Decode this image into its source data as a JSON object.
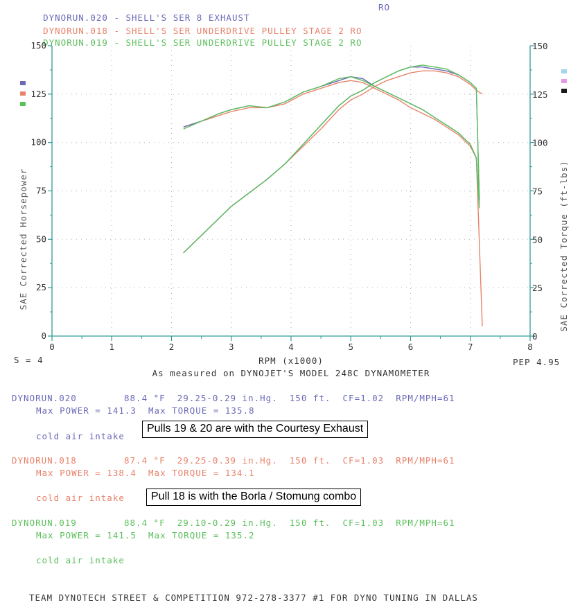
{
  "legend": [
    {
      "run": "DYNORUN.020",
      "desc": "SHELL'S SER 8 EXHAUST",
      "tag": "RO",
      "color": "#6a6ab8"
    },
    {
      "run": "DYNORUN.018",
      "desc": "SHELL'S SER UNDERDRIVE PULLEY STAGE 2",
      "tag": "RO",
      "color": "#e8826a"
    },
    {
      "run": "DYNORUN.019",
      "desc": "SHELL'S SER UNDERDRIVE PULLEY STAGE 2",
      "tag": "RO",
      "color": "#5cc05c"
    }
  ],
  "legend_sep": "-",
  "s_label": "S = 4",
  "pep_label": "PEP 4.95",
  "caption": "As measured on DYNOJET'S MODEL 248C DYNAMOMETER",
  "runs": [
    {
      "name": "DYNORUN.020",
      "temp": "88.4 °F",
      "baro": "29.25-0.29 in.Hg.",
      "alt": "150 ft.",
      "cf": "CF=1.02",
      "ratio": "RPM/MPH=61",
      "max_power_label": "Max POWER =",
      "max_power": "141.3",
      "max_torque_label": "Max TORQUE =",
      "max_torque": "135.8",
      "intake": "cold air intake",
      "color": "#6a6ab8",
      "callout": "Pulls 19 & 20 are with the Courtesy Exhaust"
    },
    {
      "name": "DYNORUN.018",
      "temp": "87.4 °F",
      "baro": "29.25-0.39 in.Hg.",
      "alt": "150 ft.",
      "cf": "CF=1.03",
      "ratio": "RPM/MPH=61",
      "max_power_label": "Max POWER =",
      "max_power": "138.4",
      "max_torque_label": "Max TORQUE =",
      "max_torque": "134.1",
      "intake": "cold air intake",
      "color": "#e8826a",
      "callout": "Pull 18 is with the Borla / Stomung combo"
    },
    {
      "name": "DYNORUN.019",
      "temp": "88.4 °F",
      "baro": "29.10-0.29 in.Hg.",
      "alt": "150 ft.",
      "cf": "CF=1.03",
      "ratio": "RPM/MPH=61",
      "max_power_label": "Max POWER =",
      "max_power": "141.5",
      "max_torque_label": "Max TORQUE =",
      "max_torque": "135.2",
      "intake": "cold air intake",
      "color": "#5cc05c",
      "callout": ""
    }
  ],
  "footer": "TEAM DYNOTECH STREET & COMPETITION 972-278-3377 #1 FOR DYNO TUNING IN DALLAS",
  "chart_data": {
    "type": "line",
    "xlabel": "RPM (x1000)",
    "ylabel_left": "SAE Corrected Horsepower",
    "ylabel_right": "SAE Corrected Torque (ft-lbs)",
    "xlim": [
      0,
      8
    ],
    "ylim": [
      0,
      150
    ],
    "x_ticks": [
      0,
      1,
      2,
      3,
      4,
      5,
      6,
      7,
      8
    ],
    "y_ticks": [
      0,
      25,
      50,
      75,
      100,
      125,
      150
    ],
    "grid": true,
    "grid_style": "dotted",
    "axis_color": "#2f9a96",
    "tick_label_color": "#333333",
    "series": [
      {
        "name": "DYNORUN.020",
        "measure": "horsepower",
        "color": "#6a6ab8",
        "x": [
          2.2,
          2.5,
          2.8,
          3.0,
          3.3,
          3.6,
          3.9,
          4.2,
          4.5,
          4.8,
          5.0,
          5.2,
          5.4,
          5.6,
          5.8,
          6.0,
          6.2,
          6.4,
          6.6,
          6.8,
          7.0,
          7.1,
          7.15
        ],
        "y": [
          43,
          52,
          61,
          67,
          74,
          81,
          89,
          99,
          109,
          119,
          124,
          127,
          131,
          134,
          137,
          139,
          139,
          138,
          137,
          135,
          131,
          128,
          70
        ]
      },
      {
        "name": "DYNORUN.020",
        "measure": "torque",
        "color": "#6a6ab8",
        "x": [
          2.2,
          2.5,
          2.8,
          3.0,
          3.3,
          3.6,
          3.9,
          4.2,
          4.5,
          4.8,
          5.0,
          5.2,
          5.4,
          5.6,
          5.8,
          6.0,
          6.2,
          6.4,
          6.6,
          6.8,
          7.0,
          7.1,
          7.15
        ],
        "y": [
          108,
          111,
          115,
          117,
          119,
          118,
          121,
          126,
          129,
          132,
          134,
          133,
          129,
          126,
          123,
          120,
          117,
          113,
          109,
          105,
          99,
          92,
          68
        ]
      },
      {
        "name": "DYNORUN.018",
        "measure": "horsepower",
        "color": "#e8826a",
        "x": [
          2.2,
          2.5,
          2.8,
          3.0,
          3.3,
          3.6,
          3.9,
          4.2,
          4.5,
          4.8,
          5.0,
          5.2,
          5.4,
          5.6,
          5.8,
          6.0,
          6.2,
          6.4,
          6.6,
          6.8,
          7.0,
          7.1,
          7.2
        ],
        "y": [
          43,
          52,
          61,
          67,
          74,
          81,
          89,
          98,
          107,
          117,
          122,
          125,
          129,
          132,
          134,
          136,
          137,
          137,
          136,
          134,
          130,
          127,
          125
        ]
      },
      {
        "name": "DYNORUN.018",
        "measure": "torque",
        "color": "#e8826a",
        "x": [
          2.2,
          2.5,
          2.8,
          3.0,
          3.3,
          3.6,
          3.9,
          4.2,
          4.5,
          4.8,
          5.0,
          5.2,
          5.4,
          5.6,
          5.8,
          6.0,
          6.2,
          6.4,
          6.6,
          6.8,
          7.0,
          7.1,
          7.2
        ],
        "y": [
          108,
          111,
          114,
          116,
          118,
          118,
          120,
          125,
          128,
          131,
          132,
          131,
          128,
          125,
          122,
          118,
          115,
          112,
          108,
          104,
          98,
          92,
          5
        ]
      },
      {
        "name": "DYNORUN.019",
        "measure": "horsepower",
        "color": "#5cc05c",
        "x": [
          2.2,
          2.5,
          2.8,
          3.0,
          3.3,
          3.6,
          3.9,
          4.2,
          4.5,
          4.8,
          5.0,
          5.2,
          5.4,
          5.6,
          5.8,
          6.0,
          6.2,
          6.4,
          6.6,
          6.8,
          7.0,
          7.1,
          7.15
        ],
        "y": [
          43,
          52,
          61,
          67,
          74,
          81,
          89,
          99,
          109,
          119,
          124,
          127,
          131,
          134,
          137,
          139,
          140,
          139,
          138,
          135,
          131,
          128,
          72
        ]
      },
      {
        "name": "DYNORUN.019",
        "measure": "torque",
        "color": "#5cc05c",
        "x": [
          2.2,
          2.5,
          2.8,
          3.0,
          3.3,
          3.6,
          3.9,
          4.2,
          4.5,
          4.8,
          5.0,
          5.2,
          5.4,
          5.6,
          5.8,
          6.0,
          6.2,
          6.4,
          6.6,
          6.8,
          7.0,
          7.1,
          7.15
        ],
        "y": [
          107,
          111,
          115,
          117,
          119,
          118,
          121,
          126,
          129,
          133,
          134,
          132,
          129,
          126,
          123,
          120,
          117,
          113,
          109,
          105,
          99,
          92,
          66
        ]
      }
    ]
  }
}
